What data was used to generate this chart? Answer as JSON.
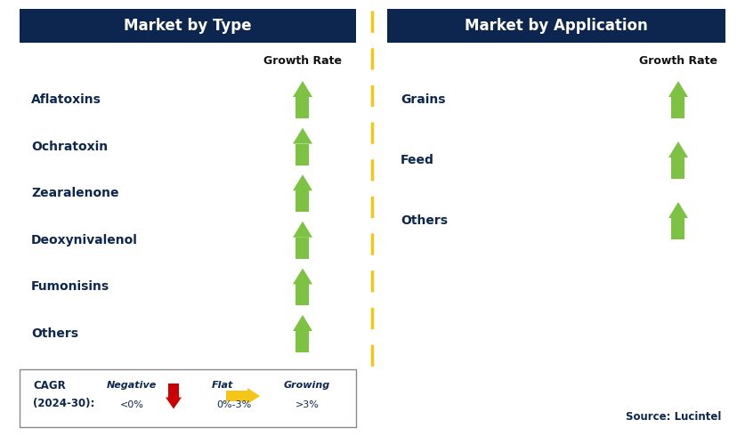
{
  "title_left": "Market by Type",
  "title_right": "Market by Application",
  "header_bg": "#0d2650",
  "header_text_color": "#ffffff",
  "left_items": [
    "Aflatoxins",
    "Ochratoxin",
    "Zearalenone",
    "Deoxynivalenol",
    "Fumonisins",
    "Others"
  ],
  "right_items": [
    "Grains",
    "Feed",
    "Others"
  ],
  "arrow_color_green": "#7dc242",
  "arrow_color_red": "#cc0000",
  "arrow_color_yellow": "#f5c518",
  "growth_rate_label": "Growth Rate",
  "divider_color": "#f5c518",
  "item_text_color": "#0d2650",
  "source_text": "Source: Lucintel",
  "bg_color": "#ffffff",
  "legend_cagr": "CAGR",
  "legend_cagr2": "(2024-30):",
  "legend_negative_label": "Negative",
  "legend_negative_sub": "<0%",
  "legend_flat_label": "Flat",
  "legend_flat_sub": "0%-3%",
  "legend_growing_label": "Growing",
  "legend_growing_sub": ">3%"
}
